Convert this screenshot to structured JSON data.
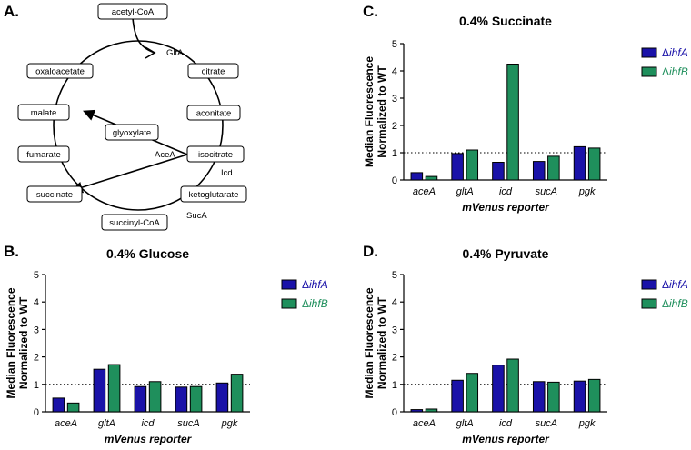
{
  "colors": {
    "ihfA": "#1a12a8",
    "ihfB": "#1f8f5c",
    "axis": "#000000"
  },
  "panels": {
    "a": "A.",
    "b": "B.",
    "c": "C.",
    "d": "D."
  },
  "pathway": {
    "nodes": {
      "acetylcoa": "acetyl-CoA",
      "citrate": "citrate",
      "aconitate": "aconitate",
      "isocitrate": "isocitrate",
      "ketoglutarate": "ketoglutarate",
      "succinylcoa": "succinyl-CoA",
      "succinate": "succinate",
      "fumarate": "fumarate",
      "malate": "malate",
      "oxaloacetate": "oxaloacetate",
      "glyoxylate": "glyoxylate"
    },
    "enzymes": {
      "glta": "GltA",
      "acea": "AceA",
      "icd": "Icd",
      "suca": "SucA"
    }
  },
  "chart_data": [
    {
      "id": "c",
      "type": "bar",
      "title": "0.4% Succinate",
      "xlabel": "mVenus reporter",
      "ylabel_line1": "Median Fluorescence",
      "ylabel_line2": "Normalized to WT",
      "categories": [
        "aceA",
        "gltA",
        "icd",
        "sucA",
        "pgk"
      ],
      "ylim": [
        0,
        5
      ],
      "yticks": [
        "0",
        "1",
        "2",
        "3",
        "4",
        "5"
      ],
      "reference_line": 1,
      "legend_prefix": "Δ",
      "series": [
        {
          "name": "ihfA",
          "values": [
            0.27,
            0.97,
            0.65,
            0.68,
            1.22
          ]
        },
        {
          "name": "ihfB",
          "values": [
            0.13,
            1.1,
            4.25,
            0.87,
            1.17
          ]
        }
      ]
    },
    {
      "id": "b",
      "type": "bar",
      "title": "0.4% Glucose",
      "xlabel": "mVenus reporter",
      "ylabel_line1": "Median Fluorescence",
      "ylabel_line2": "Normalized to WT",
      "categories": [
        "aceA",
        "gltA",
        "icd",
        "sucA",
        "pgk"
      ],
      "ylim": [
        0,
        5
      ],
      "yticks": [
        "0",
        "1",
        "2",
        "3",
        "4",
        "5"
      ],
      "reference_line": 1,
      "legend_prefix": "Δ",
      "series": [
        {
          "name": "ihfA",
          "values": [
            0.5,
            1.55,
            0.92,
            0.9,
            1.05
          ]
        },
        {
          "name": "ihfB",
          "values": [
            0.32,
            1.72,
            1.1,
            0.92,
            1.37
          ]
        }
      ]
    },
    {
      "id": "d",
      "type": "bar",
      "title": "0.4% Pyruvate",
      "xlabel": "mVenus reporter",
      "ylabel_line1": "Median Fluorescence",
      "ylabel_line2": "Normalized to WT",
      "categories": [
        "aceA",
        "gltA",
        "icd",
        "sucA",
        "pgk"
      ],
      "ylim": [
        0,
        5
      ],
      "yticks": [
        "0",
        "1",
        "2",
        "3",
        "4",
        "5"
      ],
      "reference_line": 1,
      "legend_prefix": "Δ",
      "series": [
        {
          "name": "ihfA",
          "values": [
            0.08,
            1.15,
            1.7,
            1.1,
            1.12
          ]
        },
        {
          "name": "ihfB",
          "values": [
            0.1,
            1.4,
            1.92,
            1.08,
            1.18
          ]
        }
      ]
    }
  ]
}
